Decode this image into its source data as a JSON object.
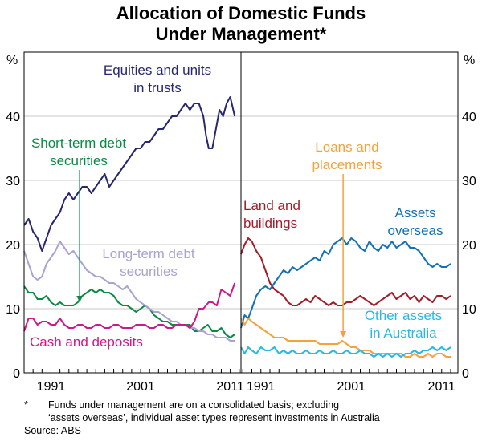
{
  "chart_data": {
    "type": "line",
    "title": "Allocation of Domestic Funds",
    "subtitle": "Under Management*",
    "ylabel_left": "%",
    "ylabel_right": "%",
    "ylim": [
      0,
      50
    ],
    "yticks": [
      "0",
      "10",
      "20",
      "30",
      "40"
    ],
    "grid": true,
    "panels": [
      {
        "name": "left",
        "xlim": [
          1988,
          2012.2
        ],
        "xticks": [
          {
            "year": 1991,
            "label": "1991"
          },
          {
            "year": 2001,
            "label": "2001"
          },
          {
            "year": 2011,
            "label": "2011"
          }
        ],
        "series": [
          {
            "name": "Equities and units in trusts",
            "color": "#27276e",
            "label_lines": [
              "Equities and units",
              "in trusts"
            ],
            "x": [
              1988.0,
              1988.5,
              1989.0,
              1989.5,
              1990.0,
              1990.5,
              1991.0,
              1991.5,
              1992.0,
              1992.5,
              1993.0,
              1993.5,
              1994.0,
              1994.5,
              1995.0,
              1995.5,
              1996.0,
              1996.5,
              1997.0,
              1997.5,
              1998.0,
              1998.5,
              1999.0,
              1999.5,
              2000.0,
              2000.5,
              2001.0,
              2001.5,
              2002.0,
              2002.5,
              2003.0,
              2003.5,
              2004.0,
              2004.5,
              2005.0,
              2005.5,
              2006.0,
              2006.5,
              2007.0,
              2007.5,
              2008.0,
              2008.3,
              2008.6,
              2009.0,
              2009.4,
              2009.8,
              2010.2,
              2010.6,
              2011.0,
              2011.5
            ],
            "values": [
              23,
              24,
              22,
              21,
              19,
              21,
              23,
              24,
              25,
              27,
              28,
              27,
              28,
              29,
              29,
              28,
              29,
              30,
              31,
              29,
              30,
              31,
              32,
              33,
              34,
              35,
              35,
              36,
              36,
              37,
              38,
              38,
              39,
              40,
              40,
              41,
              42,
              41,
              42,
              42,
              40,
              37,
              35,
              35,
              38,
              41,
              40,
              42,
              43,
              40
            ]
          },
          {
            "name": "Short-term debt securities",
            "color": "#0c8a45",
            "label_lines": [
              "Short-term debt",
              "securities"
            ],
            "x": [
              1988.0,
              1988.5,
              1989.0,
              1989.5,
              1990.0,
              1990.5,
              1991.0,
              1991.5,
              1992.0,
              1992.5,
              1993.0,
              1993.5,
              1994.0,
              1994.5,
              1995.0,
              1995.5,
              1996.0,
              1996.5,
              1997.0,
              1997.5,
              1998.0,
              1998.5,
              1999.0,
              1999.5,
              2000.0,
              2000.5,
              2001.0,
              2001.5,
              2002.0,
              2002.5,
              2003.0,
              2003.5,
              2004.0,
              2004.5,
              2005.0,
              2005.5,
              2006.0,
              2006.5,
              2007.0,
              2007.5,
              2008.0,
              2008.5,
              2009.0,
              2009.5,
              2010.0,
              2010.5,
              2011.0,
              2011.5
            ],
            "values": [
              13.5,
              12.5,
              12.5,
              11.5,
              11.5,
              12,
              11,
              10.5,
              11,
              10.5,
              10.5,
              10.5,
              11,
              12,
              12.5,
              13,
              12.5,
              13,
              12.5,
              12.5,
              12,
              11,
              10.5,
              10.5,
              10,
              9.5,
              10,
              10.5,
              10,
              9,
              8.5,
              8,
              8,
              7.5,
              7.5,
              7.5,
              7.5,
              7.5,
              6.5,
              6.5,
              7,
              7.5,
              6.5,
              6.5,
              7,
              6,
              5.5,
              6
            ]
          },
          {
            "name": "Long-term debt securities",
            "color": "#a8a3d0",
            "label_lines": [
              "Long-term debt",
              "securities"
            ],
            "x": [
              1988.0,
              1988.5,
              1989.0,
              1989.5,
              1990.0,
              1990.5,
              1991.0,
              1991.5,
              1992.0,
              1992.5,
              1993.0,
              1993.5,
              1994.0,
              1994.5,
              1995.0,
              1995.5,
              1996.0,
              1996.5,
              1997.0,
              1997.5,
              1998.0,
              1998.5,
              1999.0,
              1999.5,
              2000.0,
              2000.5,
              2001.0,
              2001.5,
              2002.0,
              2002.5,
              2003.0,
              2003.5,
              2004.0,
              2004.5,
              2005.0,
              2005.5,
              2006.0,
              2006.5,
              2007.0,
              2007.5,
              2008.0,
              2008.5,
              2009.0,
              2009.5,
              2010.0,
              2010.5,
              2011.0,
              2011.5
            ],
            "values": [
              19,
              17,
              15,
              14.5,
              15,
              17,
              18,
              19,
              20.5,
              19.5,
              18.5,
              19,
              18,
              17,
              16,
              15.5,
              15,
              15,
              14.5,
              14,
              14,
              13.5,
              13,
              13.5,
              12.5,
              11.5,
              11,
              10.5,
              10,
              9.5,
              9.5,
              9,
              8.5,
              8,
              8,
              7.5,
              7.5,
              7,
              7,
              6.5,
              6.5,
              6,
              6,
              5.5,
              5.5,
              5.5,
              5,
              5
            ]
          },
          {
            "name": "Cash and deposits",
            "color": "#cc1a8a",
            "label_lines": [
              "Cash and deposits"
            ],
            "x": [
              1988.0,
              1988.5,
              1989.0,
              1989.5,
              1990.0,
              1990.5,
              1991.0,
              1991.5,
              1992.0,
              1992.5,
              1993.0,
              1993.5,
              1994.0,
              1994.5,
              1995.0,
              1995.5,
              1996.0,
              1996.5,
              1997.0,
              1997.5,
              1998.0,
              1998.5,
              1999.0,
              1999.5,
              2000.0,
              2000.5,
              2001.0,
              2001.5,
              2002.0,
              2002.5,
              2003.0,
              2003.5,
              2004.0,
              2004.5,
              2005.0,
              2005.5,
              2006.0,
              2006.5,
              2007.0,
              2007.5,
              2008.0,
              2008.3,
              2008.6,
              2009.0,
              2009.5,
              2010.0,
              2010.5,
              2011.0,
              2011.5
            ],
            "values": [
              6.5,
              8.5,
              8.5,
              7.5,
              8,
              8,
              7.5,
              7.5,
              8.5,
              7.5,
              7,
              7,
              7.5,
              7.5,
              7,
              7,
              7.5,
              7.5,
              7,
              7,
              7.5,
              7.5,
              7,
              7,
              7,
              7.5,
              7.5,
              7.5,
              7,
              7,
              7.5,
              7.5,
              7,
              7,
              7.5,
              7.5,
              7.5,
              7,
              8,
              10,
              10,
              10.5,
              11,
              11,
              10.5,
              13,
              12.5,
              12,
              14
            ]
          }
        ]
      },
      {
        "name": "right",
        "xlim": [
          1988.8,
          2012.8
        ],
        "xticks": [
          {
            "year": 1991,
            "label": "1991"
          },
          {
            "year": 2001,
            "label": "2001"
          },
          {
            "year": 2011,
            "label": "2011"
          }
        ],
        "series": [
          {
            "name": "Land and buildings",
            "color": "#a01e2a",
            "label_lines": [
              "Land and",
              "buildings"
            ],
            "x": [
              1988.8,
              1989.2,
              1989.6,
              1990.0,
              1990.5,
              1991.0,
              1991.5,
              1992.0,
              1992.5,
              1993.0,
              1993.5,
              1994.0,
              1994.5,
              1995.0,
              1995.5,
              1996.0,
              1996.5,
              1997.0,
              1997.5,
              1998.0,
              1998.5,
              1999.0,
              1999.5,
              2000.0,
              2000.5,
              2001.0,
              2001.5,
              2002.0,
              2002.5,
              2003.0,
              2003.5,
              2004.0,
              2004.5,
              2005.0,
              2005.5,
              2006.0,
              2006.5,
              2007.0,
              2007.5,
              2008.0,
              2008.5,
              2009.0,
              2009.5,
              2010.0,
              2010.5,
              2011.0,
              2011.5,
              2012.0
            ],
            "values": [
              18.5,
              20,
              21,
              20.5,
              19,
              18,
              16,
              14,
              13,
              12.5,
              12,
              11,
              10.5,
              10.5,
              11,
              11.5,
              11,
              12,
              11.5,
              11,
              10.5,
              11,
              10.5,
              10.5,
              11,
              11,
              11.5,
              12,
              11.5,
              11,
              10.5,
              11,
              11.5,
              12,
              12.5,
              11.5,
              12,
              12.5,
              11.5,
              12,
              11,
              12,
              11.5,
              11,
              12,
              12,
              11.5,
              12
            ]
          },
          {
            "name": "Assets overseas",
            "color": "#1470b4",
            "label_lines": [
              "Assets",
              "overseas"
            ],
            "x": [
              1988.8,
              1989.2,
              1989.6,
              1990.0,
              1990.5,
              1991.0,
              1991.5,
              1992.0,
              1992.5,
              1993.0,
              1993.5,
              1994.0,
              1994.5,
              1995.0,
              1995.5,
              1996.0,
              1996.5,
              1997.0,
              1997.5,
              1998.0,
              1998.5,
              1999.0,
              1999.5,
              2000.0,
              2000.5,
              2001.0,
              2001.5,
              2002.0,
              2002.5,
              2003.0,
              2003.5,
              2004.0,
              2004.5,
              2005.0,
              2005.5,
              2006.0,
              2006.5,
              2007.0,
              2007.5,
              2008.0,
              2008.5,
              2009.0,
              2009.5,
              2010.0,
              2010.5,
              2011.0,
              2011.5,
              2012.0
            ],
            "values": [
              7,
              9,
              8.5,
              10,
              12,
              13,
              13.5,
              13,
              14,
              15,
              16,
              15.5,
              16.5,
              16,
              16.5,
              17,
              17.5,
              18,
              17.5,
              19,
              18.5,
              20,
              20.5,
              21,
              20,
              21,
              20.5,
              19.5,
              19,
              20.5,
              19.5,
              19,
              20,
              19.5,
              20.5,
              19.5,
              20,
              20.5,
              19.5,
              19.5,
              19,
              18,
              17,
              16.5,
              17,
              16.5,
              16.5,
              17
            ]
          },
          {
            "name": "Loans and placements",
            "color": "#f7a13c",
            "label_lines": [
              "Loans and",
              "placements"
            ],
            "x": [
              1988.8,
              1989.2,
              1989.6,
              1990.0,
              1990.5,
              1991.0,
              1991.5,
              1992.0,
              1992.5,
              1993.0,
              1993.5,
              1994.0,
              1994.5,
              1995.0,
              1995.5,
              1996.0,
              1996.5,
              1997.0,
              1997.5,
              1998.0,
              1998.5,
              1999.0,
              1999.5,
              2000.0,
              2000.5,
              2001.0,
              2001.5,
              2002.0,
              2002.5,
              2003.0,
              2003.5,
              2004.0,
              2004.5,
              2005.0,
              2005.5,
              2006.0,
              2006.5,
              2007.0,
              2007.5,
              2008.0,
              2008.5,
              2009.0,
              2009.5,
              2010.0,
              2010.5,
              2011.0,
              2011.5,
              2012.0
            ],
            "values": [
              8.5,
              7.5,
              8.5,
              8,
              7.5,
              7,
              6.5,
              6,
              5.5,
              5.5,
              5.5,
              5,
              5,
              5,
              5,
              5,
              5,
              5,
              4.5,
              4.5,
              4.5,
              4.5,
              4.5,
              5,
              4.5,
              4,
              4,
              3.5,
              3.5,
              3.5,
              3,
              3,
              3,
              3,
              3,
              3,
              3,
              2.5,
              2.5,
              3,
              2.5,
              2.5,
              3,
              2.5,
              3,
              3,
              2.5,
              2.5
            ]
          },
          {
            "name": "Other assets in Australia",
            "color": "#29b7e6",
            "label_lines": [
              "Other assets",
              "in Australia"
            ],
            "x": [
              1988.8,
              1989.2,
              1989.6,
              1990.0,
              1990.5,
              1991.0,
              1991.5,
              1992.0,
              1992.5,
              1993.0,
              1993.5,
              1994.0,
              1994.5,
              1995.0,
              1995.5,
              1996.0,
              1996.5,
              1997.0,
              1997.5,
              1998.0,
              1998.5,
              1999.0,
              1999.5,
              2000.0,
              2000.5,
              2001.0,
              2001.5,
              2002.0,
              2002.5,
              2003.0,
              2003.5,
              2004.0,
              2004.5,
              2005.0,
              2005.5,
              2006.0,
              2006.5,
              2007.0,
              2007.5,
              2008.0,
              2008.5,
              2009.0,
              2009.5,
              2010.0,
              2010.5,
              2011.0,
              2011.5,
              2012.0
            ],
            "values": [
              4,
              3,
              4,
              3.5,
              3,
              4,
              3.5,
              3.5,
              4,
              3,
              3.5,
              3,
              3.5,
              3,
              3,
              3.5,
              3,
              3,
              3.5,
              3,
              3,
              3.5,
              3,
              3,
              3.5,
              3,
              3,
              3.5,
              3,
              3,
              2.5,
              3,
              2.5,
              3,
              2.5,
              3,
              2.5,
              3,
              3,
              3.5,
              3,
              3.5,
              3.5,
              4,
              3.5,
              4,
              3.5,
              4
            ]
          }
        ]
      }
    ],
    "annotations": [
      {
        "text": "Short-term debt securities",
        "arrow_to": {
          "panel": "left",
          "year": 1994.2,
          "value": 11
        }
      },
      {
        "text": "Loans and placements",
        "arrow_to": {
          "panel": "right",
          "year": 2000.1,
          "value": 5.5
        }
      }
    ]
  },
  "footnote": {
    "marker": "*",
    "line1": "Funds under management are on a consolidated basis; excluding",
    "line2": "‘assets overseas’, individual asset types represent investments in Australia"
  },
  "source": "Source: ABS"
}
